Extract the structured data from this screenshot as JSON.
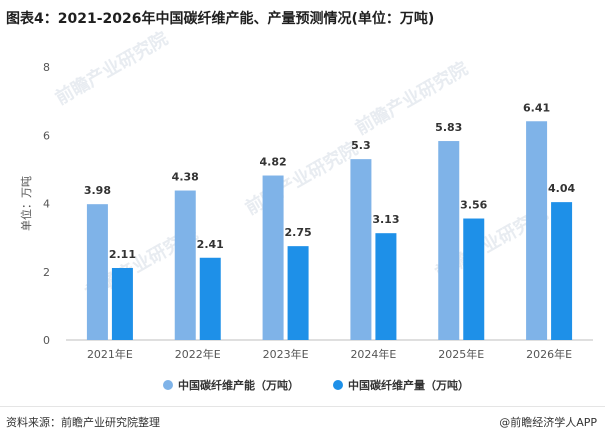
{
  "title": "图表4：2021-2026年中国碳纤维产能、产量预测情况(单位：万吨)",
  "watermark": "前瞻产业研究院",
  "source_label": "资料来源：前瞻产业研究院整理",
  "credit_label": "@前瞻经济学人APP",
  "colors": {
    "capacity": "#7FB3E8",
    "output": "#1E90E8",
    "axis_text": "#555555",
    "grid": "#d0d0d0"
  },
  "chart_data": {
    "type": "bar",
    "ylabel": "单位：万吨",
    "xlabel": "",
    "ylim": [
      0,
      8
    ],
    "yticks": [
      0,
      2,
      4,
      6,
      8
    ],
    "grid": false,
    "legend_position": "bottom",
    "categories": [
      "2021年E",
      "2022年E",
      "2023年E",
      "2024年E",
      "2025年E",
      "2026年E"
    ],
    "series": [
      {
        "name": "中国碳纤维产能（万吨）",
        "values": [
          3.98,
          4.38,
          4.82,
          5.3,
          5.83,
          6.41
        ]
      },
      {
        "name": "中国碳纤维产量（万吨）",
        "values": [
          2.11,
          2.41,
          2.75,
          3.13,
          3.56,
          4.04
        ]
      }
    ]
  }
}
